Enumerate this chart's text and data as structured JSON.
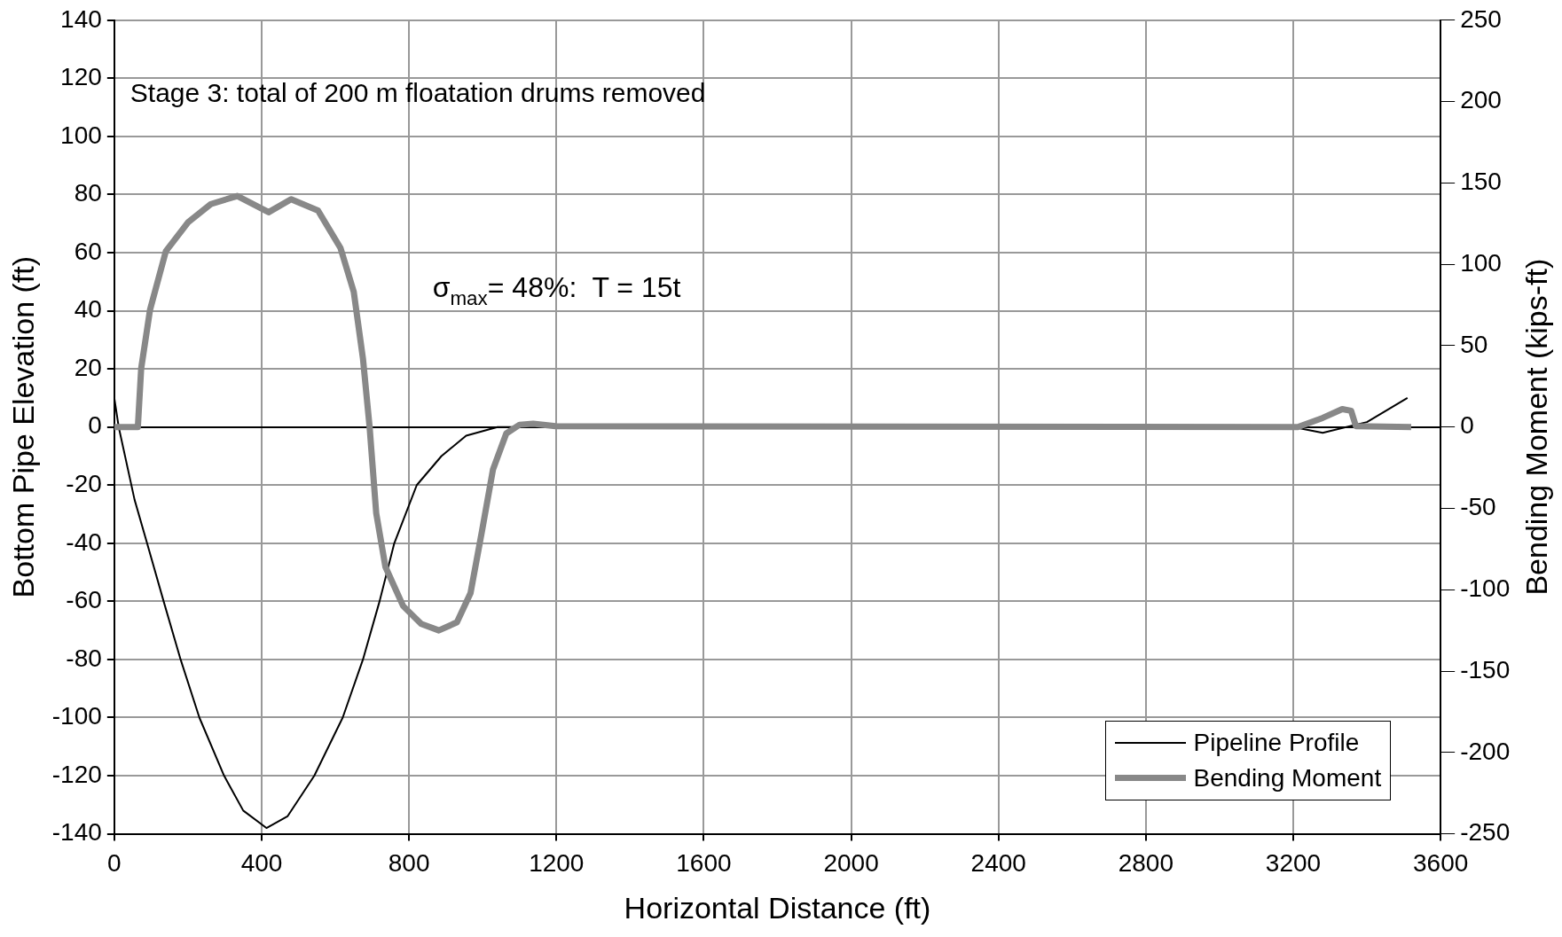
{
  "chart_data": {
    "type": "line",
    "xlabel": "Horizontal Distance (ft)",
    "ylabel": "Bottom Pipe Elevation (ft)",
    "y2label": "Bending Moment (kips-ft)",
    "xlim": [
      0,
      3600
    ],
    "xticks": [
      0,
      400,
      800,
      1200,
      1600,
      2000,
      2400,
      2800,
      3200,
      3600
    ],
    "ylim": [
      -140,
      140
    ],
    "yticks": [
      -140,
      -120,
      -100,
      -80,
      -60,
      -40,
      -20,
      0,
      20,
      40,
      60,
      80,
      100,
      120,
      140
    ],
    "y2lim": [
      -250,
      250
    ],
    "y2ticks": [
      -250,
      -200,
      -150,
      -100,
      -50,
      0,
      50,
      100,
      150,
      200,
      250
    ],
    "grid": true,
    "legend": "bottom right",
    "marker": "none",
    "annotations": [
      "Stage 3: total of 200 m floatation drums removed",
      "σ$_{max}$= 48%:  T = 15t"
    ],
    "series": [
      {
        "name": "Pipeline Profile",
        "color": "#000000",
        "x": [
          0,
          12,
          55,
          89,
          134,
          180,
          231,
          298,
          350,
          413,
          470,
          543,
          620,
          675,
          720,
          760,
          821,
          888,
          955,
          1040,
          1200,
          3200,
          3280,
          3400,
          3510
        ],
        "values": [
          10,
          0,
          -25,
          -40,
          -60,
          -80,
          -100,
          -120,
          -132,
          -138,
          -134,
          -120,
          -100,
          -80,
          -60,
          -40,
          -20,
          -10,
          -3,
          0,
          0,
          0,
          -2,
          1.7,
          10
        ]
      },
      {
        "name": "Bending Moment",
        "color": "#888888",
        "axis": "y2",
        "x": [
          0,
          64,
          73,
          97,
          140,
          201,
          262,
          334,
          419,
          480,
          553,
          614,
          650,
          675,
          693,
          711,
          736,
          784,
          833,
          881,
          930,
          967,
          998,
          1028,
          1064,
          1100,
          1137,
          1198,
          3212,
          3280,
          3333,
          3357,
          3370,
          3520
        ],
        "values": [
          0,
          0,
          36,
          72,
          108,
          126,
          137,
          142,
          132,
          140,
          133,
          110,
          83,
          42,
          0,
          -53,
          -86,
          -110,
          -121,
          -125,
          -120,
          -102,
          -64,
          -26,
          -4,
          1.4,
          2,
          0.5,
          0,
          5.6,
          11,
          10,
          0.5,
          0
        ]
      }
    ]
  }
}
